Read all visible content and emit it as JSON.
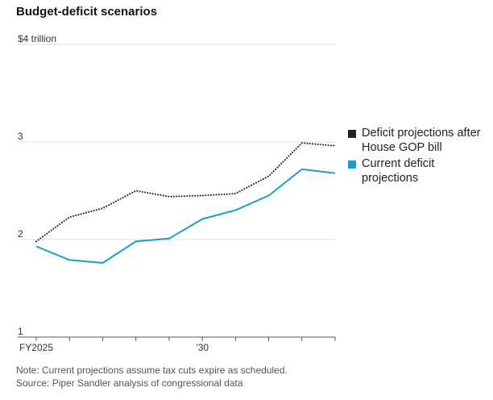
{
  "title": "Budget-deficit scenarios",
  "legend": [
    {
      "label": "Deficit projections after House GOP bill",
      "color": "#222222"
    },
    {
      "label": "Current deficit projections",
      "color": "#1a9ad6"
    }
  ],
  "notes": {
    "note": "Note: Current projections assume tax cuts expire as scheduled.",
    "source": "Source: Piper Sandler analysis of congressional data"
  },
  "chart_data": {
    "type": "line",
    "title": "Budget-deficit scenarios",
    "xlabel": "",
    "ylabel": "",
    "x": [
      2025,
      2026,
      2027,
      2028,
      2029,
      2030,
      2031,
      2032,
      2033,
      2034
    ],
    "x_tick_labels": [
      {
        "x": 2025,
        "label": "FY2025"
      },
      {
        "x": 2030,
        "label": "’30"
      }
    ],
    "y_ticks": [
      {
        "value": 1,
        "label": "1"
      },
      {
        "value": 2,
        "label": "2"
      },
      {
        "value": 3,
        "label": "3"
      },
      {
        "value": 4,
        "label": "$4 trillion"
      }
    ],
    "ylim": [
      1,
      4
    ],
    "grid": true,
    "legend_position": "right",
    "series": [
      {
        "name": "Deficit projections after House GOP bill",
        "color": "#222222",
        "style": "dotted",
        "values": [
          1.98,
          2.23,
          2.32,
          2.5,
          2.44,
          2.45,
          2.47,
          2.65,
          2.99,
          2.96
        ]
      },
      {
        "name": "Current deficit projections",
        "color": "#1a9ad6",
        "style": "solid",
        "values": [
          1.93,
          1.79,
          1.76,
          1.98,
          2.01,
          2.21,
          2.3,
          2.45,
          2.72,
          2.68
        ]
      }
    ]
  }
}
